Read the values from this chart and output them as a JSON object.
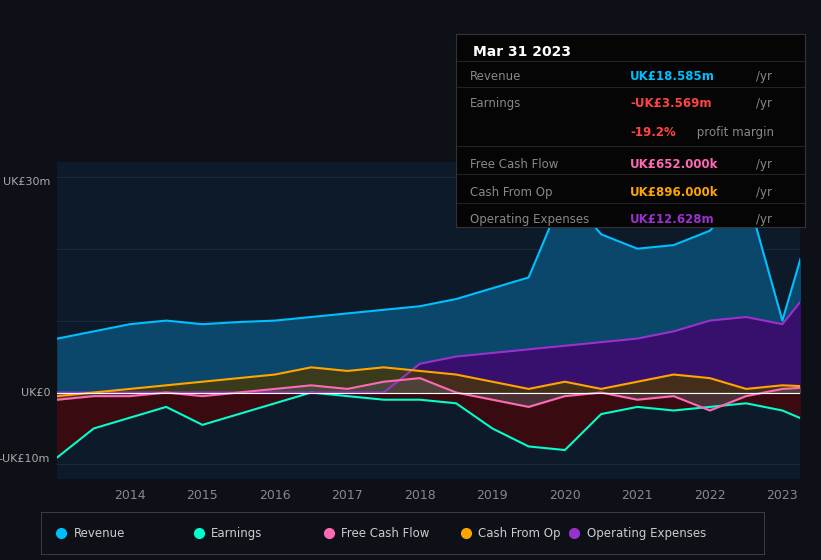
{
  "bg_color": "#0d1117",
  "chart_bg": "#0d1a2a",
  "years": [
    2013.0,
    2013.5,
    2014.0,
    2014.5,
    2015.0,
    2015.5,
    2016.0,
    2016.5,
    2017.0,
    2017.5,
    2018.0,
    2018.5,
    2019.0,
    2019.5,
    2020.0,
    2020.5,
    2021.0,
    2021.5,
    2022.0,
    2022.5,
    2023.0,
    2023.25
  ],
  "revenue": [
    7.5,
    8.5,
    9.5,
    10.0,
    9.5,
    9.8,
    10.0,
    10.5,
    11.0,
    11.5,
    12.0,
    13.0,
    14.5,
    16.0,
    28.0,
    22.0,
    20.0,
    20.5,
    22.5,
    28.0,
    10.0,
    18.585
  ],
  "earnings": [
    -9.0,
    -5.0,
    -3.5,
    -2.0,
    -4.5,
    -3.0,
    -1.5,
    0.0,
    -0.5,
    -1.0,
    -1.0,
    -1.5,
    -5.0,
    -7.5,
    -8.0,
    -3.0,
    -2.0,
    -2.5,
    -2.0,
    -1.5,
    -2.5,
    -3.569
  ],
  "free_cash_flow": [
    -1.0,
    -0.5,
    -0.5,
    0.0,
    -0.5,
    0.0,
    0.5,
    1.0,
    0.5,
    1.5,
    2.0,
    0.0,
    -1.0,
    -2.0,
    -0.5,
    0.0,
    -1.0,
    -0.5,
    -2.5,
    -0.5,
    0.5,
    0.652
  ],
  "cash_from_op": [
    -0.5,
    0.0,
    0.5,
    1.0,
    1.5,
    2.0,
    2.5,
    3.5,
    3.0,
    3.5,
    3.0,
    2.5,
    1.5,
    0.5,
    1.5,
    0.5,
    1.5,
    2.5,
    2.0,
    0.5,
    1.0,
    0.896
  ],
  "op_expenses": [
    0.0,
    0.0,
    0.0,
    0.0,
    0.0,
    0.0,
    0.0,
    0.0,
    0.0,
    0.0,
    4.0,
    5.0,
    5.5,
    6.0,
    6.5,
    7.0,
    7.5,
    8.5,
    10.0,
    10.5,
    9.5,
    12.628
  ],
  "revenue_color": "#00bfff",
  "earnings_color": "#00ffcc",
  "fcf_color": "#ff69b4",
  "cashop_color": "#ffa500",
  "opex_color": "#9932cc",
  "revenue_fill": "#0a4a6e",
  "earnings_fill": "#3d0a10",
  "fcf_fill": "#555555",
  "cashop_fill": "#4a3800",
  "opex_fill": "#3d0a6e",
  "ylim": [
    -12,
    32
  ],
  "xticks": [
    2014,
    2015,
    2016,
    2017,
    2018,
    2019,
    2020,
    2021,
    2022,
    2023
  ],
  "legend_labels": [
    "Revenue",
    "Earnings",
    "Free Cash Flow",
    "Cash From Op",
    "Operating Expenses"
  ],
  "legend_colors": [
    "#00bfff",
    "#00ffcc",
    "#ff69b4",
    "#ffa500",
    "#9932cc"
  ],
  "info_box": {
    "title": "Mar 31 2023",
    "rows": [
      {
        "label": "Revenue",
        "value": "UK£18.585m",
        "unit": "/yr",
        "color": "#00bfff",
        "is_subrow": false
      },
      {
        "label": "Earnings",
        "value": "-UK£3.569m",
        "unit": "/yr",
        "color": "#ff4444",
        "is_subrow": false
      },
      {
        "label": "",
        "value": "-19.2%",
        "unit": " profit margin",
        "color": "#ff4444",
        "is_subrow": true
      },
      {
        "label": "Free Cash Flow",
        "value": "UK£652.000k",
        "unit": "/yr",
        "color": "#ff69b4",
        "is_subrow": false
      },
      {
        "label": "Cash From Op",
        "value": "UK£896.000k",
        "unit": "/yr",
        "color": "#ffa500",
        "is_subrow": false
      },
      {
        "label": "Operating Expenses",
        "value": "UK£12.628m",
        "unit": "/yr",
        "color": "#9932cc",
        "is_subrow": false
      }
    ]
  }
}
